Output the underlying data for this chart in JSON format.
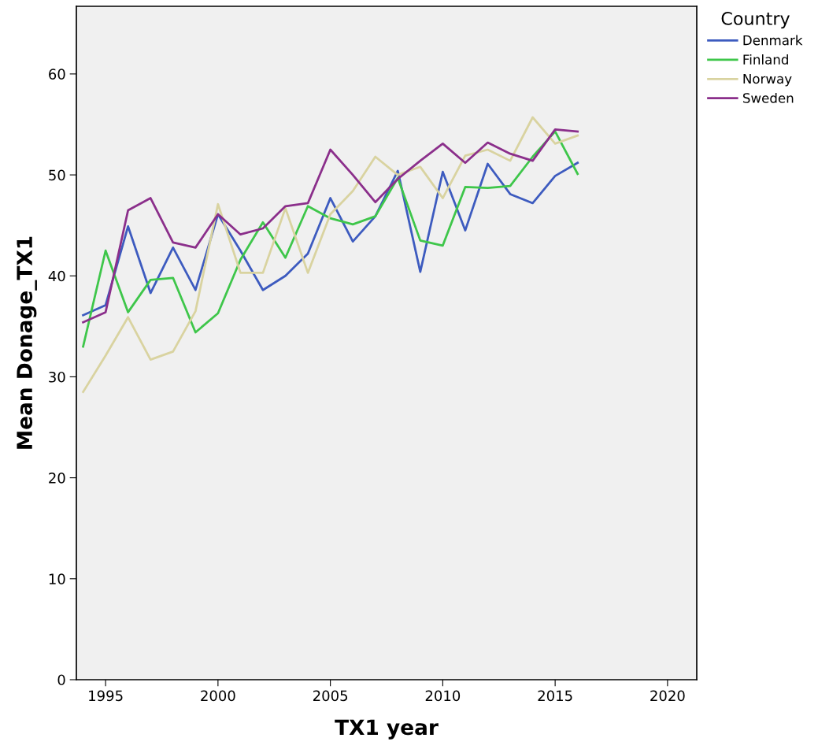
{
  "chart_data": {
    "type": "line",
    "xlabel": "TX1 year",
    "ylabel": "Mean Donage_TX1",
    "legend_title": "Country",
    "legend": "right",
    "grid": false,
    "marker": "none",
    "line_style": "solid",
    "x": [
      1994,
      1995,
      1996,
      1997,
      1998,
      1999,
      2000,
      2001,
      2002,
      2003,
      2004,
      2005,
      2006,
      2007,
      2008,
      2009,
      2010,
      2011,
      2012,
      2013,
      2014,
      2015,
      2016
    ],
    "xlim": [
      1993.7,
      2021.3
    ],
    "xticks": [
      1995,
      2000,
      2005,
      2010,
      2015,
      2020
    ],
    "ylim": [
      0,
      66.7
    ],
    "yticks": [
      0,
      10,
      20,
      30,
      40,
      50,
      60
    ],
    "series": [
      {
        "name": "Denmark",
        "color": "#3d5bbf",
        "values": [
          36.1,
          37.1,
          44.9,
          38.3,
          42.8,
          38.6,
          46.1,
          42.5,
          38.6,
          40.0,
          42.2,
          47.7,
          43.4,
          45.9,
          50.4,
          40.4,
          50.3,
          44.5,
          51.1,
          48.1,
          47.2,
          49.9,
          51.2
        ]
      },
      {
        "name": "Finland",
        "color": "#3ec64a",
        "values": [
          33.0,
          42.5,
          36.4,
          39.6,
          39.8,
          34.4,
          36.3,
          41.6,
          45.3,
          41.8,
          46.9,
          45.7,
          45.1,
          45.9,
          49.7,
          43.5,
          43.0,
          48.8,
          48.7,
          48.9,
          51.8,
          54.3,
          50.1
        ]
      },
      {
        "name": "Norway",
        "color": "#d9d3a0",
        "values": [
          28.5,
          32.1,
          35.9,
          31.7,
          32.5,
          36.5,
          47.1,
          40.3,
          40.3,
          46.7,
          40.3,
          46.1,
          48.4,
          51.8,
          50.0,
          50.8,
          47.7,
          51.9,
          52.5,
          51.4,
          55.7,
          53.1,
          53.9
        ]
      },
      {
        "name": "Sweden",
        "color": "#8b2f8b",
        "values": [
          35.4,
          36.4,
          46.5,
          47.7,
          43.3,
          42.8,
          46.1,
          44.1,
          44.7,
          46.9,
          47.2,
          52.5,
          50.0,
          47.3,
          49.6,
          51.4,
          53.1,
          51.2,
          53.2,
          52.1,
          51.4,
          54.5,
          54.3
        ]
      }
    ]
  }
}
